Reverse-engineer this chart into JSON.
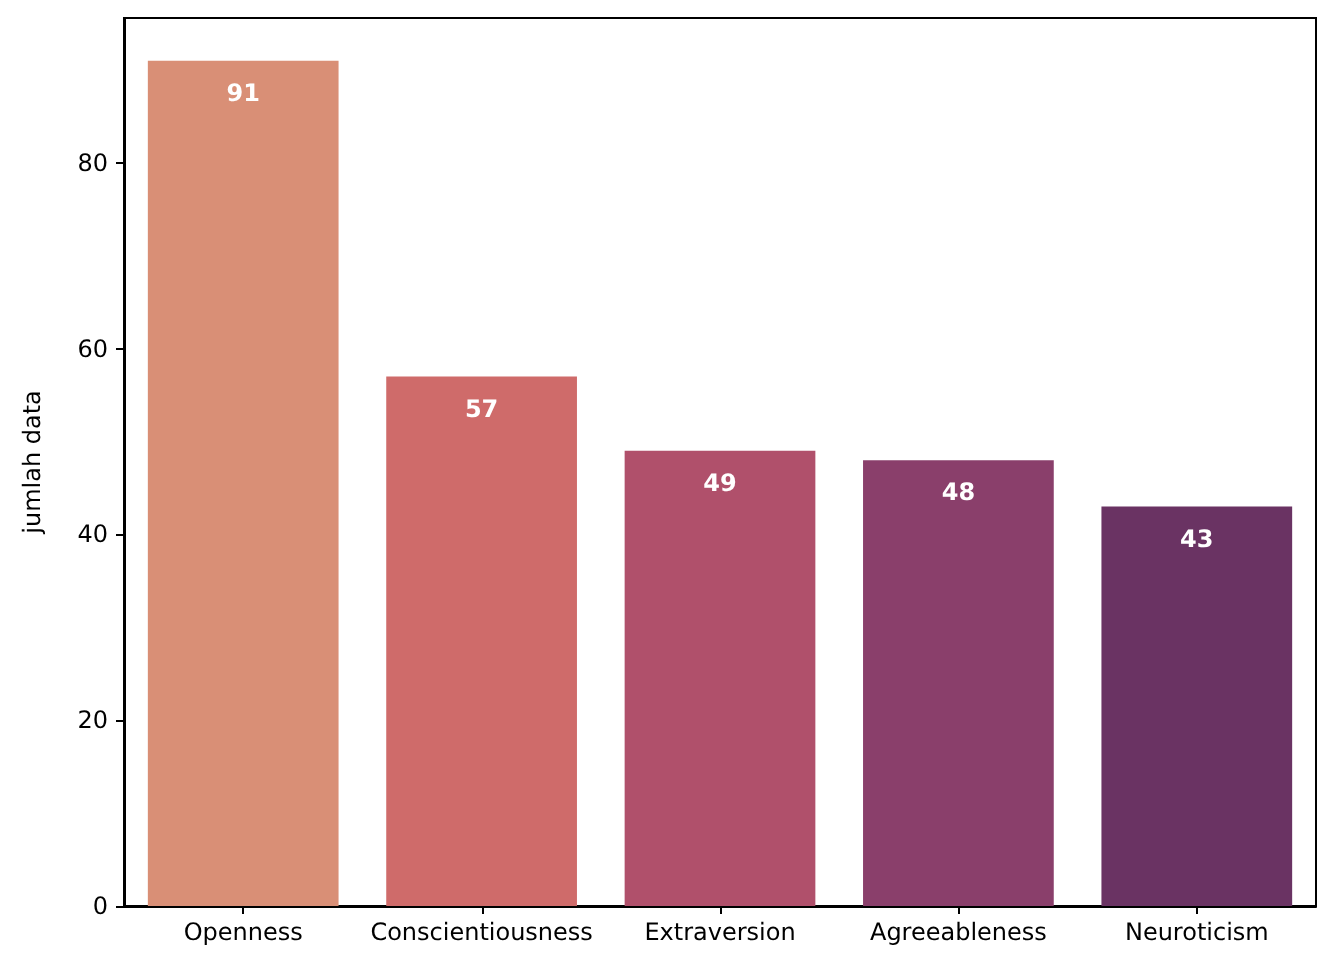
{
  "chart_data": {
    "type": "bar",
    "ylabel": "jumlah data",
    "categories": [
      "Openness",
      "Conscientiousness",
      "Extraversion",
      "Agreeableness",
      "Neuroticism"
    ],
    "values": [
      91,
      57,
      49,
      48,
      43
    ],
    "colors": [
      "#d98f76",
      "#cf6b6a",
      "#b0506b",
      "#8a3f6b",
      "#6a3363"
    ],
    "ylim": [
      0,
      95.6
    ],
    "yticks": [
      0,
      20,
      40,
      60,
      80
    ],
    "data_labels": true
  }
}
